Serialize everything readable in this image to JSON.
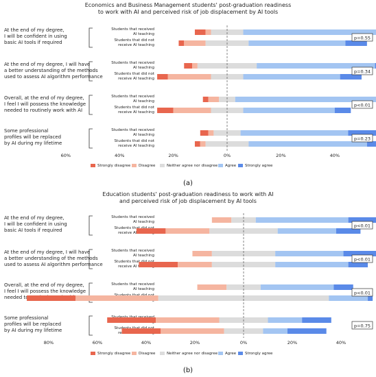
{
  "figure": {
    "panel_labels": [
      "(a)",
      "(b)"
    ]
  },
  "chart_data": [
    {
      "type": "bar",
      "subtype": "diverging-stacked-bar",
      "title": "Economics and Business Management students' post-graduation readiness\nto work with AI and perceived risk of job displacement by AI tools",
      "xlabel": "",
      "ylabel": "",
      "xlim": [
        -60,
        100
      ],
      "ticks": [
        "60%",
        "40%",
        "20%",
        "0%",
        "20%",
        "40%",
        "60%",
        "80%",
        "100%"
      ],
      "legend_position": "bottom",
      "grid": false,
      "series": [
        {
          "name": "Strongly disagree",
          "color": "#e8664e"
        },
        {
          "name": "Disagree",
          "color": "#f5b5a0"
        },
        {
          "name": "Neither agree nor disagree",
          "color": "#dcdcdc"
        },
        {
          "name": "Agree",
          "color": "#a3c5f2"
        },
        {
          "name": "Strongly agree",
          "color": "#5a8ae8"
        }
      ],
      "questions": [
        {
          "label": "At the end of my degree,\nI will be confident in using\nbasic AI tools if required",
          "p_value": "p=0.55",
          "groups": [
            {
              "label": "Students that received\nAI teaching",
              "values": [
                4,
                2,
                12,
                56,
                8
              ]
            },
            {
              "label": "Students that did not\nreceive AI teaching",
              "values": [
                2,
                8,
                16,
                36,
                8
              ]
            }
          ]
        },
        {
          "label": "At the end of my degree, I will have\na better understanding of the methods\nused to assess AI algorithm performance",
          "p_value": "p=0.34",
          "groups": [
            {
              "label": "Students that received\nAI teaching",
              "values": [
                3,
                2,
                22,
                44,
                4
              ]
            },
            {
              "label": "Students that did not\nreceive AI teaching",
              "values": [
                4,
                16,
                12,
                36,
                8
              ]
            }
          ]
        },
        {
          "label": "Overall, at the end of my degree,\nI feel I will possess the knowledge\nneeded to routinely work with AI",
          "p_value": "p<0.01",
          "groups": [
            {
              "label": "Students that received\nAI teaching",
              "values": [
                2,
                4,
                6,
                72,
                8
              ]
            },
            {
              "label": "Students that did not\nreceive AI teaching",
              "values": [
                6,
                14,
                12,
                34,
                6
              ]
            }
          ]
        },
        {
          "label": "Some professional\nprofiles will be replaced\nby AI during my lifetime",
          "p_value": "p=0.23",
          "groups": [
            {
              "label": "Students that received\nAI teaching",
              "values": [
                3,
                2,
                10,
                40,
                32
              ]
            },
            {
              "label": "Students that did not\nreceive AI teaching",
              "values": [
                2,
                2,
                16,
                44,
                18
              ]
            }
          ]
        }
      ]
    },
    {
      "type": "bar",
      "subtype": "diverging-stacked-bar",
      "title": "Education students' post-graduation readiness to work with AI\nand perceived risk of job displacement by AI tools",
      "xlabel": "",
      "ylabel": "",
      "xlim": [
        -80,
        100
      ],
      "ticks": [
        "80%",
        "60%",
        "40%",
        "20%",
        "0%",
        "20%",
        "40%",
        "60%",
        "80%",
        "100%"
      ],
      "legend_position": "bottom",
      "grid": false,
      "series": [
        {
          "name": "Strongly disagree",
          "color": "#e8664e"
        },
        {
          "name": "Disagree",
          "color": "#f5b5a0"
        },
        {
          "name": "Neither agree nor disagree",
          "color": "#dcdcdc"
        },
        {
          "name": "Agree",
          "color": "#a3c5f2"
        },
        {
          "name": "Strongly agree",
          "color": "#5a8ae8"
        }
      ],
      "questions": [
        {
          "label": "At the end of my degree,\nI will be confident in using\nbasic AI tools if required",
          "p_value": "p<0.01",
          "groups": [
            {
              "label": "Students that received\nAI teaching",
              "values": [
                0,
                8,
                10,
                38,
                42
              ]
            },
            {
              "label": "Students that did not\nreceive AI teaching",
              "values": [
                12,
                18,
                28,
                24,
                10
              ]
            }
          ]
        },
        {
          "label": "At the end of my degree, I will have\na better understanding of the methods\nused to assess AI algorithm performance",
          "p_value": "p<0.01",
          "groups": [
            {
              "label": "Students that received\nAI teaching",
              "values": [
                0,
                8,
                26,
                28,
                18
              ]
            },
            {
              "label": "Students that did not\nreceive AI teaching",
              "values": [
                16,
                14,
                26,
                30,
                8
              ]
            }
          ]
        },
        {
          "label": "Overall, at the end of my degree,\nI feel I will possess the knowledge\nneeded to routinely work with AI",
          "p_value": "p<0.01",
          "groups": [
            {
              "label": "Students that received\nAI teaching",
              "values": [
                0,
                12,
                14,
                30,
                8
              ]
            },
            {
              "label": "Students that did not\nreceive AI teaching",
              "values": [
                20,
                34,
                70,
                16,
                2
              ]
            }
          ]
        },
        {
          "label": "Some professional\nprofiles will be replaced\nby AI during my lifetime",
          "p_value": "p=0.75",
          "groups": [
            {
              "label": "Students that received\nAI teaching",
              "values": [
                20,
                26,
                20,
                14,
                12
              ]
            },
            {
              "label": "Students that did not\nreceive AI teaching",
              "values": [
                16,
                26,
                16,
                10,
                16
              ]
            }
          ]
        }
      ]
    }
  ]
}
